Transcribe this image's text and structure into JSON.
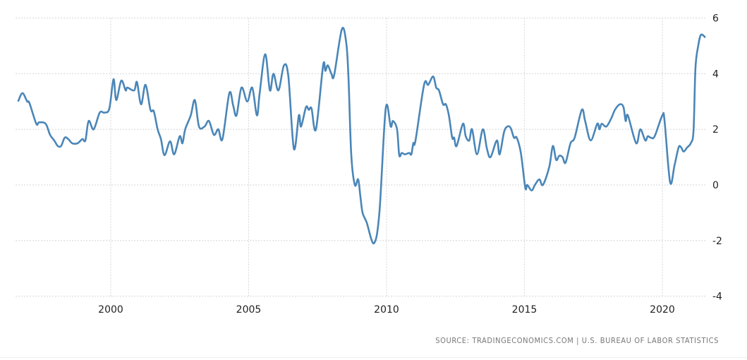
{
  "chart_data": {
    "type": "line",
    "title": "",
    "xlabel": "",
    "ylabel": "",
    "xlim": [
      1996.5,
      2021.6
    ],
    "ylim": [
      -4,
      6
    ],
    "x_ticks": [
      2000,
      2005,
      2010,
      2015,
      2020
    ],
    "y_ticks": [
      -4,
      -2,
      0,
      2,
      4,
      6
    ],
    "y_axis_side": "right",
    "grid": true,
    "legend": "none",
    "line_color": "#4a86b8",
    "series": [
      {
        "x": [
          1996.64,
          1996.8,
          1996.97,
          1997.05,
          1997.3,
          1997.4,
          1997.64,
          1997.8,
          1997.95,
          1998.08,
          1998.2,
          1998.33,
          1998.46,
          1998.6,
          1998.8,
          1998.97,
          1999.08,
          1999.2,
          1999.38,
          1999.6,
          1999.77,
          1999.95,
          2000.1,
          2000.2,
          2000.38,
          2000.54,
          2000.6,
          2000.85,
          2000.95,
          2001.1,
          2001.26,
          2001.44,
          2001.56,
          2001.7,
          2001.82,
          2001.95,
          2002.15,
          2002.3,
          2002.5,
          2002.6,
          2002.7,
          2002.9,
          2003.05,
          2003.2,
          2003.4,
          2003.56,
          2003.74,
          2003.9,
          2004.05,
          2004.3,
          2004.44,
          2004.56,
          2004.74,
          2004.95,
          2005.13,
          2005.3,
          2005.4,
          2005.6,
          2005.77,
          2005.9,
          2006.08,
          2006.28,
          2006.44,
          2006.64,
          2006.82,
          2006.9,
          2007.08,
          2007.18,
          2007.28,
          2007.44,
          2007.7,
          2007.78,
          2007.87,
          2008.0,
          2008.1,
          2008.38,
          2008.54,
          2008.62,
          2008.72,
          2008.85,
          2008.97,
          2009.05,
          2009.13,
          2009.28,
          2009.54,
          2009.74,
          2009.97,
          2010.15,
          2010.23,
          2010.38,
          2010.46,
          2010.55,
          2010.67,
          2010.82,
          2010.9,
          2010.97,
          2011.05,
          2011.36,
          2011.51,
          2011.69,
          2011.8,
          2011.9,
          2012.05,
          2012.15,
          2012.26,
          2012.38,
          2012.45,
          2012.54,
          2012.77,
          2012.87,
          2013.0,
          2013.1,
          2013.28,
          2013.49,
          2013.64,
          2013.77,
          2014.0,
          2014.1,
          2014.26,
          2014.38,
          2014.5,
          2014.62,
          2014.72,
          2014.87,
          2015.03,
          2015.1,
          2015.26,
          2015.38,
          2015.54,
          2015.67,
          2015.9,
          2016.03,
          2016.15,
          2016.26,
          2016.38,
          2016.49,
          2016.67,
          2016.82,
          2017.08,
          2017.2,
          2017.4,
          2017.64,
          2017.72,
          2017.8,
          2017.97,
          2018.15,
          2018.28,
          2018.46,
          2018.59,
          2018.67,
          2018.75,
          2019.05,
          2019.2,
          2019.38,
          2019.47,
          2019.58,
          2019.72,
          2020.0,
          2020.08,
          2020.28,
          2020.44,
          2020.59,
          2020.68,
          2020.77,
          2020.9,
          2021.03,
          2021.13,
          2021.2,
          2021.3,
          2021.4,
          2021.56
        ],
        "y": [
          3.0,
          3.3,
          3.0,
          2.95,
          2.2,
          2.25,
          2.2,
          1.8,
          1.6,
          1.4,
          1.4,
          1.7,
          1.65,
          1.5,
          1.5,
          1.65,
          1.6,
          2.3,
          2.0,
          2.6,
          2.6,
          2.75,
          3.8,
          3.05,
          3.75,
          3.4,
          3.5,
          3.4,
          3.7,
          2.9,
          3.6,
          2.7,
          2.65,
          2.0,
          1.65,
          1.07,
          1.57,
          1.1,
          1.75,
          1.5,
          2.0,
          2.5,
          3.05,
          2.1,
          2.1,
          2.3,
          1.8,
          2.0,
          1.65,
          3.3,
          2.85,
          2.5,
          3.5,
          3.0,
          3.5,
          2.5,
          3.3,
          4.7,
          3.4,
          4.0,
          3.4,
          4.3,
          3.9,
          1.3,
          2.5,
          2.1,
          2.8,
          2.7,
          2.75,
          2.0,
          4.3,
          4.1,
          4.3,
          4.0,
          3.95,
          5.6,
          5.1,
          3.85,
          1.1,
          0.0,
          0.2,
          -0.4,
          -1.0,
          -1.35,
          -2.1,
          -1.0,
          2.75,
          2.1,
          2.3,
          2.0,
          1.07,
          1.15,
          1.1,
          1.15,
          1.1,
          1.5,
          1.6,
          3.6,
          3.6,
          3.9,
          3.5,
          3.4,
          2.9,
          2.9,
          2.5,
          1.7,
          1.7,
          1.4,
          2.2,
          1.75,
          1.6,
          2.0,
          1.1,
          2.0,
          1.3,
          1.0,
          1.6,
          1.1,
          1.9,
          2.1,
          2.05,
          1.7,
          1.7,
          1.15,
          -0.1,
          0.0,
          -0.2,
          0.0,
          0.2,
          0.0,
          0.65,
          1.4,
          0.9,
          1.05,
          1.0,
          0.8,
          1.5,
          1.7,
          2.7,
          2.3,
          1.6,
          2.2,
          2.0,
          2.2,
          2.1,
          2.4,
          2.7,
          2.9,
          2.8,
          2.3,
          2.5,
          1.5,
          2.0,
          1.6,
          1.75,
          1.7,
          1.75,
          2.5,
          2.3,
          0.1,
          0.7,
          1.35,
          1.35,
          1.2,
          1.35,
          1.5,
          1.95,
          4.2,
          5.0,
          5.4,
          5.3
        ]
      }
    ]
  },
  "source": "SOURCE: TRADINGECONOMICS.COM | U.S. BUREAU OF LABOR STATISTICS"
}
